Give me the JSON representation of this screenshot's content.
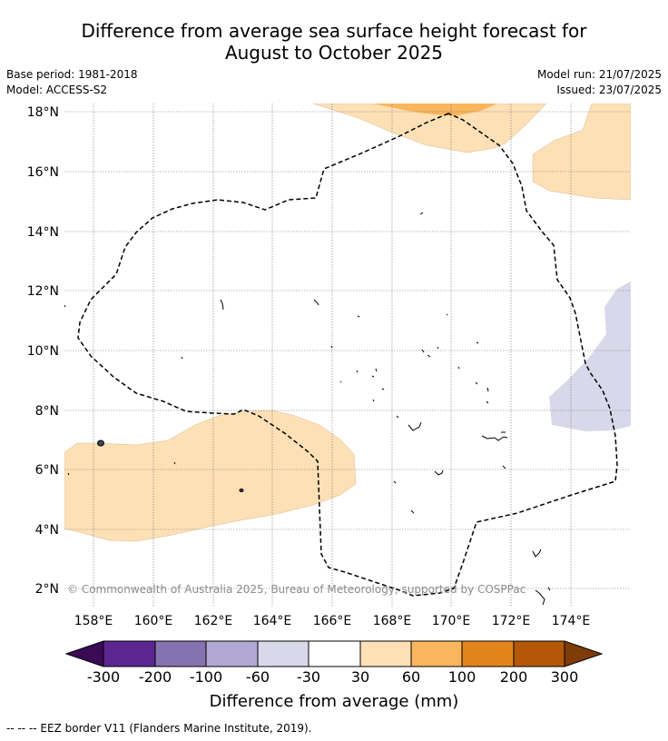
{
  "title": {
    "line1": "Difference from average sea surface height forecast for",
    "line2": "August to October 2025"
  },
  "meta": {
    "base_period": "Base period: 1981-2018",
    "model": "Model: ACCESS-S2",
    "model_run": "Model run: 21/07/2025",
    "issued": "Issued: 23/07/2025"
  },
  "map": {
    "lat_labels": [
      "18°N",
      "16°N",
      "14°N",
      "12°N",
      "10°N",
      "8°N",
      "6°N",
      "4°N",
      "2°N"
    ],
    "lon_labels": [
      "158°E",
      "160°E",
      "162°E",
      "164°E",
      "166°E",
      "168°E",
      "170°E",
      "172°E",
      "174°E"
    ],
    "copyright": "© Commonwealth of Australia 2025, Bureau of Meteorology, supported by COSPPac",
    "colors": {
      "band_30_60": "#fde0b5",
      "band_60_100": "#f9b65d",
      "band_neg60_neg30": "#d8d8ea",
      "land": "#000000",
      "eez_border": "#000000"
    }
  },
  "colorbar": {
    "ticks": [
      "-300",
      "-200",
      "-100",
      "-60",
      "-30",
      "30",
      "60",
      "100",
      "200",
      "300"
    ],
    "colors": [
      "#3b0a57",
      "#5c2690",
      "#8572b0",
      "#b1a8d3",
      "#d8d8ea",
      "#ffffff",
      "#fde0b5",
      "#f9b65d",
      "#e3841a",
      "#b45808",
      "#7f3b08"
    ],
    "label": "Difference from average (mm)"
  },
  "footnote": "--  --  -- EEZ border V11 (Flanders Marine Institute, 2019)."
}
